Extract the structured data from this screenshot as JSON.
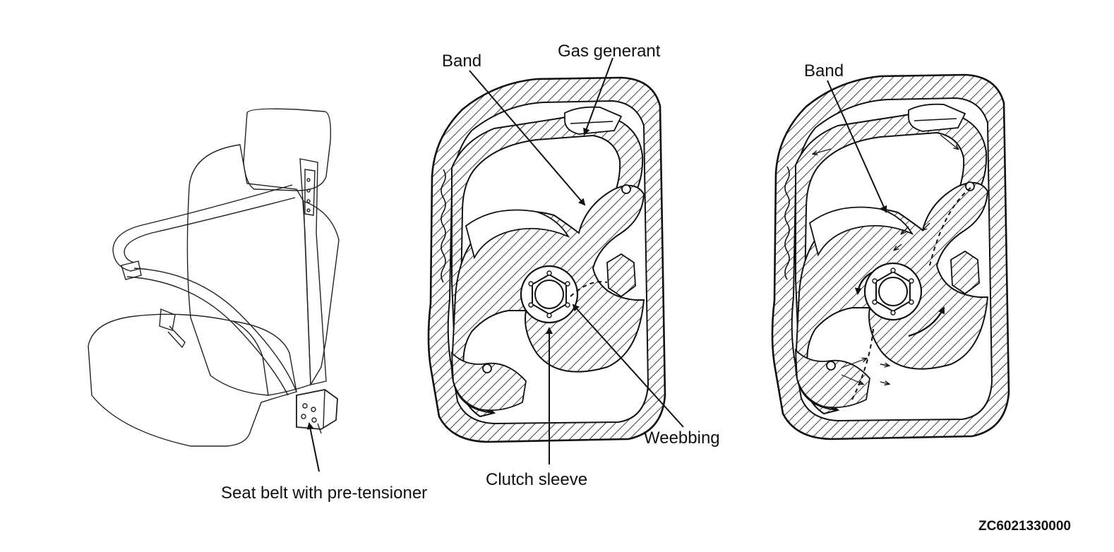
{
  "labels": {
    "seat_belt": "Seat belt with pre-tensioner",
    "band_middle": "Band",
    "gas_generant": "Gas generant",
    "weebbing": "Weebbing",
    "clutch_sleeve": "Clutch sleeve",
    "band_right": "Band"
  },
  "figure_code": "ZC6021330000"
}
